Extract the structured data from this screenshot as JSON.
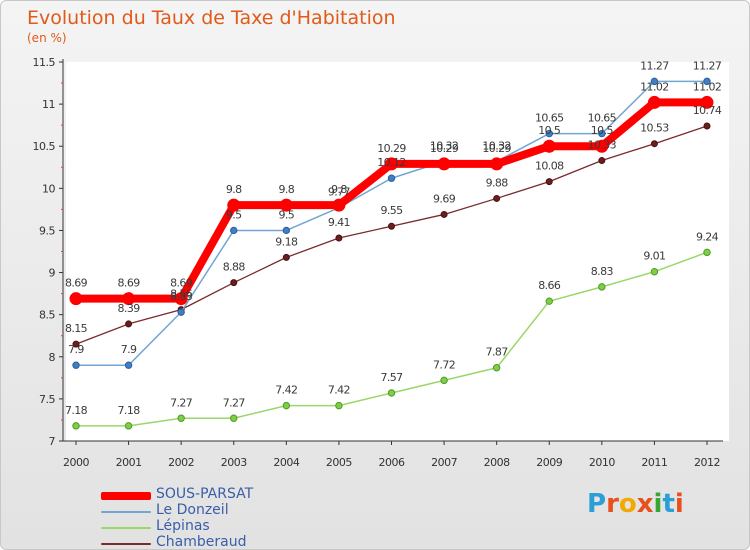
{
  "header": {
    "title": "Evolution du Taux de Taxe d'Habitation",
    "subtitle": "(en %)"
  },
  "logo": {
    "text": "Proxiti",
    "letter_colors": [
      "#2a9fd6",
      "#e8501e",
      "#f2a900",
      "#e8501e",
      "#3aa537",
      "#2a9fd6",
      "#e8501e"
    ]
  },
  "colors": {
    "title": "#e05a1a",
    "legend_text": "#3a5ea8"
  },
  "chart_data": {
    "type": "line",
    "title": "Evolution du Taux de Taxe d'Habitation",
    "subtitle": "(en %)",
    "xlabel": "",
    "ylabel": "",
    "categories": [
      "2000",
      "2001",
      "2002",
      "2003",
      "2004",
      "2005",
      "2006",
      "2007",
      "2008",
      "2009",
      "2010",
      "2011",
      "2012"
    ],
    "ylim": [
      7,
      11.5
    ],
    "yticks": [
      "7",
      "7.5",
      "8",
      "8.5",
      "9",
      "9.5",
      "10",
      "10.5",
      "11",
      "11.5"
    ],
    "grid": false,
    "legend_position": "bottom-left",
    "series": [
      {
        "name": "SOUS-PARSAT",
        "color": "#ff0000",
        "values": [
          8.69,
          8.69,
          8.69,
          9.8,
          9.8,
          9.8,
          10.29,
          10.29,
          10.29,
          10.5,
          10.5,
          11.02,
          11.02
        ],
        "labels": [
          "8.69",
          "8.69",
          "8.69",
          "9.8",
          "9.8",
          "9.8",
          "10.29",
          "10.29",
          "10.29",
          "10.5",
          "10.5",
          "11.02",
          "11.02"
        ]
      },
      {
        "name": "Le Donzeil",
        "color": "#72a6d2",
        "values": [
          7.9,
          7.9,
          8.53,
          9.5,
          9.5,
          9.77,
          10.12,
          10.32,
          10.32,
          10.65,
          10.65,
          11.27,
          11.27
        ],
        "labels": [
          "7.9",
          "7.9",
          "8.53",
          "9.5",
          "9.5",
          "9.77",
          "10.12",
          "10.32",
          "10.32",
          "10.65",
          "10.65",
          "11.27",
          "11.27"
        ]
      },
      {
        "name": "Lépinas",
        "color": "#9ad76a",
        "values": [
          7.18,
          7.18,
          7.27,
          7.27,
          7.42,
          7.42,
          7.57,
          7.72,
          7.87,
          8.66,
          8.83,
          9.01,
          9.24
        ],
        "labels": [
          "7.18",
          "7.18",
          "7.27",
          "7.27",
          "7.42",
          "7.42",
          "7.57",
          "7.72",
          "7.87",
          "8.66",
          "8.83",
          "9.01",
          "9.24"
        ]
      },
      {
        "name": "Chamberaud",
        "color": "#7a2a2a",
        "values": [
          8.15,
          8.39,
          8.56,
          8.88,
          9.18,
          9.41,
          9.55,
          9.69,
          9.88,
          10.08,
          10.33,
          10.53,
          10.74
        ],
        "labels": [
          "8.15",
          "8.39",
          "8.56",
          "8.88",
          "9.18",
          "9.41",
          "9.55",
          "9.69",
          "9.88",
          "10.08",
          "10.33",
          "10.53",
          "10.74"
        ]
      }
    ]
  }
}
